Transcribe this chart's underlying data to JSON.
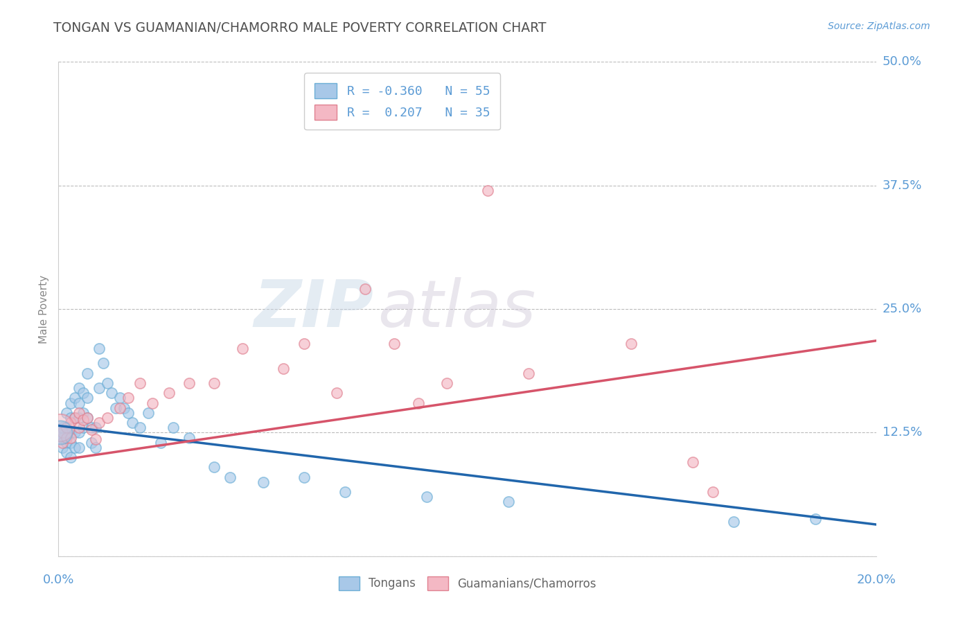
{
  "title": "TONGAN VS GUAMANIAN/CHAMORRO MALE POVERTY CORRELATION CHART",
  "source": "Source: ZipAtlas.com",
  "ylabel": "Male Poverty",
  "xlim": [
    0.0,
    0.2
  ],
  "ylim": [
    0.0,
    0.5
  ],
  "yticks": [
    0.0,
    0.125,
    0.25,
    0.375,
    0.5
  ],
  "ytick_labels_right": [
    "",
    "12.5%",
    "25.0%",
    "37.5%",
    "50.0%"
  ],
  "xtick_labels_bottom": [
    "0.0%",
    "20.0%"
  ],
  "legend_blue_label": "R = -0.360   N = 55",
  "legend_pink_label": "R =  0.207   N = 35",
  "blue_fill": "#a8c8e8",
  "blue_edge": "#6baed6",
  "pink_fill": "#f4b8c4",
  "pink_edge": "#e08090",
  "blue_line_color": "#2166ac",
  "pink_line_color": "#d6546a",
  "grid_color": "#bbbbbb",
  "background_color": "#ffffff",
  "title_color": "#505050",
  "axis_label_color": "#5b9bd5",
  "watermark_zip": "ZIP",
  "watermark_atlas": "atlas",
  "blue_trend": [
    0.0,
    0.132,
    0.2,
    0.032
  ],
  "pink_trend": [
    0.0,
    0.097,
    0.2,
    0.218
  ],
  "tongans_x": [
    0.001,
    0.001,
    0.001,
    0.002,
    0.002,
    0.002,
    0.002,
    0.003,
    0.003,
    0.003,
    0.003,
    0.003,
    0.004,
    0.004,
    0.004,
    0.004,
    0.005,
    0.005,
    0.005,
    0.005,
    0.005,
    0.006,
    0.006,
    0.006,
    0.007,
    0.007,
    0.007,
    0.008,
    0.008,
    0.009,
    0.009,
    0.01,
    0.01,
    0.011,
    0.012,
    0.013,
    0.014,
    0.015,
    0.016,
    0.017,
    0.018,
    0.02,
    0.022,
    0.025,
    0.028,
    0.032,
    0.038,
    0.042,
    0.05,
    0.06,
    0.07,
    0.09,
    0.11,
    0.165,
    0.185
  ],
  "tongans_y": [
    0.13,
    0.12,
    0.11,
    0.145,
    0.13,
    0.115,
    0.105,
    0.155,
    0.14,
    0.125,
    0.115,
    0.1,
    0.16,
    0.14,
    0.125,
    0.11,
    0.17,
    0.155,
    0.14,
    0.125,
    0.11,
    0.165,
    0.145,
    0.13,
    0.185,
    0.16,
    0.14,
    0.13,
    0.115,
    0.13,
    0.11,
    0.21,
    0.17,
    0.195,
    0.175,
    0.165,
    0.15,
    0.16,
    0.15,
    0.145,
    0.135,
    0.13,
    0.145,
    0.115,
    0.13,
    0.12,
    0.09,
    0.08,
    0.075,
    0.08,
    0.065,
    0.06,
    0.055,
    0.035,
    0.038
  ],
  "guam_x": [
    0.001,
    0.001,
    0.002,
    0.002,
    0.003,
    0.003,
    0.004,
    0.005,
    0.005,
    0.006,
    0.007,
    0.008,
    0.009,
    0.01,
    0.012,
    0.015,
    0.017,
    0.02,
    0.023,
    0.027,
    0.032,
    0.038,
    0.045,
    0.055,
    0.06,
    0.068,
    0.075,
    0.082,
    0.088,
    0.095,
    0.105,
    0.115,
    0.14,
    0.155,
    0.16
  ],
  "guam_y": [
    0.125,
    0.115,
    0.13,
    0.12,
    0.135,
    0.12,
    0.14,
    0.145,
    0.13,
    0.138,
    0.14,
    0.128,
    0.118,
    0.135,
    0.14,
    0.15,
    0.16,
    0.175,
    0.155,
    0.165,
    0.175,
    0.175,
    0.21,
    0.19,
    0.215,
    0.165,
    0.27,
    0.215,
    0.155,
    0.175,
    0.37,
    0.185,
    0.215,
    0.095,
    0.065
  ]
}
